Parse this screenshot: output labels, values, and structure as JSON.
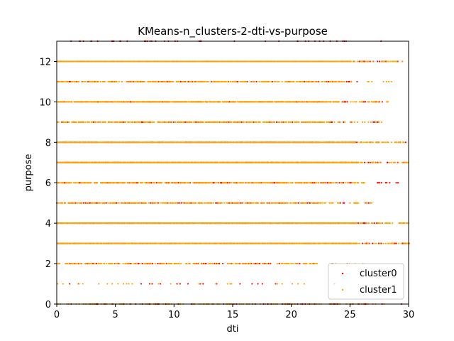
{
  "chart_data": {
    "type": "scatter",
    "title": "KMeans-n_clusters-2-dti-vs-purpose",
    "xlabel": "dti",
    "ylabel": "purpose",
    "xlim": [
      0,
      30
    ],
    "ylim": [
      0,
      13
    ],
    "xticks": [
      "0",
      "5",
      "10",
      "15",
      "20",
      "25",
      "30"
    ],
    "yticks": [
      "0",
      "2",
      "4",
      "6",
      "8",
      "10",
      "12"
    ],
    "grid": false,
    "legend_position": "lower-right",
    "series": [
      {
        "name": "cluster0",
        "color": "#ff0000",
        "values": [
          {
            "y": 0,
            "xmax": 29.9
          },
          {
            "y": 1,
            "xmax": 25.0
          },
          {
            "y": 2,
            "xmax": 26.3
          },
          {
            "y": 3,
            "xmax": 30.0
          },
          {
            "y": 4,
            "xmax": 30.0
          },
          {
            "y": 5,
            "xmax": 26.9
          },
          {
            "y": 6,
            "xmax": 29.7
          },
          {
            "y": 7,
            "xmax": 30.0
          },
          {
            "y": 8,
            "xmax": 29.8
          },
          {
            "y": 9,
            "xmax": 27.7
          },
          {
            "y": 10,
            "xmax": 28.3
          },
          {
            "y": 11,
            "xmax": 28.6
          },
          {
            "y": 12,
            "xmax": 29.5
          },
          {
            "y": 13,
            "xmax": 30.0
          }
        ]
      },
      {
        "name": "cluster1",
        "color": "#ffa500",
        "values": [
          {
            "y": 0,
            "xmax": 29.9
          },
          {
            "y": 1,
            "xmax": 25.0
          },
          {
            "y": 2,
            "xmax": 26.3
          },
          {
            "y": 3,
            "xmax": 30.0
          },
          {
            "y": 4,
            "xmax": 30.0
          },
          {
            "y": 5,
            "xmax": 26.9
          },
          {
            "y": 6,
            "xmax": 26.3
          },
          {
            "y": 7,
            "xmax": 30.0
          },
          {
            "y": 8,
            "xmax": 29.8
          },
          {
            "y": 9,
            "xmax": 27.7
          },
          {
            "y": 10,
            "xmax": 28.3
          },
          {
            "y": 11,
            "xmax": 28.6
          },
          {
            "y": 12,
            "xmax": 29.5
          }
        ]
      }
    ]
  }
}
